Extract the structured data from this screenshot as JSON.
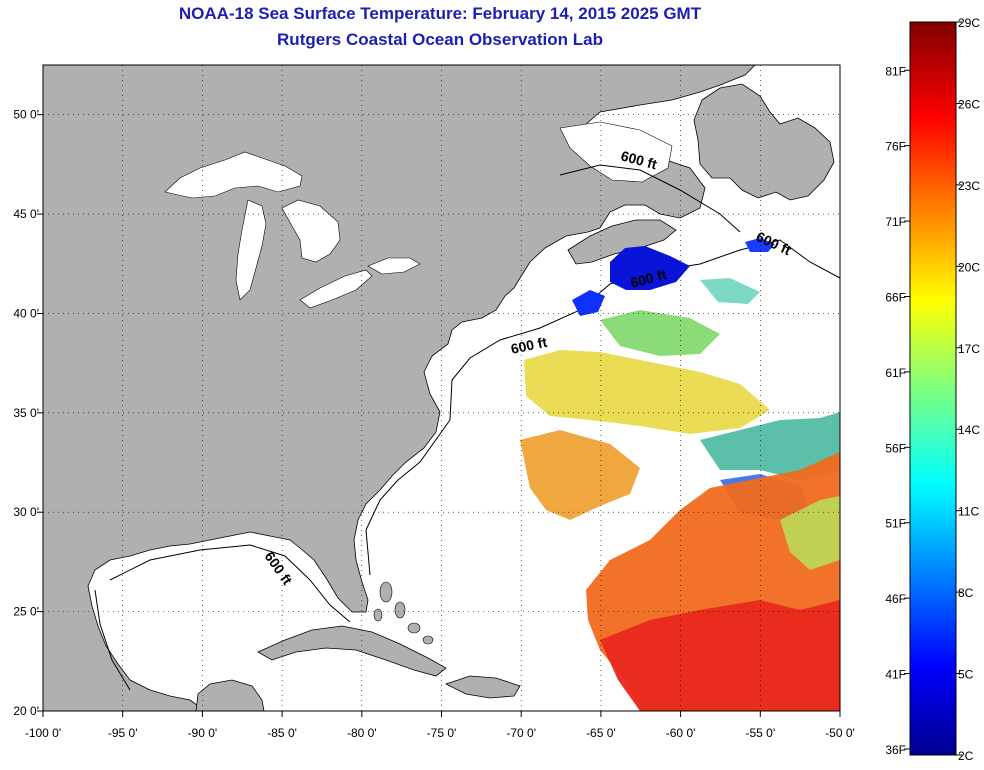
{
  "header": {
    "title": "NOAA-18 Sea Surface Temperature:  February 14, 2015 2025 GMT",
    "subtitle": "Rutgers Coastal Ocean Observation Lab"
  },
  "map": {
    "lon_ticks": [
      "-100 0'",
      "-95 0'",
      "-90 0'",
      "-85 0'",
      "-80 0'",
      "-75 0'",
      "-70 0'",
      "-65 0'",
      "-60 0'",
      "-55 0'",
      "-50 0'"
    ],
    "lat_ticks": [
      "50 0'",
      "45 0'",
      "40 0'",
      "35 0'",
      "30 0'",
      "25 0'",
      "20 0'"
    ],
    "contour_labels": [
      "600 ft",
      "600 ft",
      "600 ft",
      "600 ft",
      "600 ft"
    ],
    "land_color": "#b0b0b0",
    "cloud_color": "#ffffff"
  },
  "colorbar": {
    "celsius_labels": [
      "29C",
      "26C",
      "23C",
      "20C",
      "17C",
      "14C",
      "11C",
      "8C",
      "5C",
      "2C"
    ],
    "fahrenheit_labels": [
      "81F",
      "76F",
      "71F",
      "66F",
      "61F",
      "56F",
      "51F",
      "46F",
      "41F",
      "36F"
    ]
  }
}
